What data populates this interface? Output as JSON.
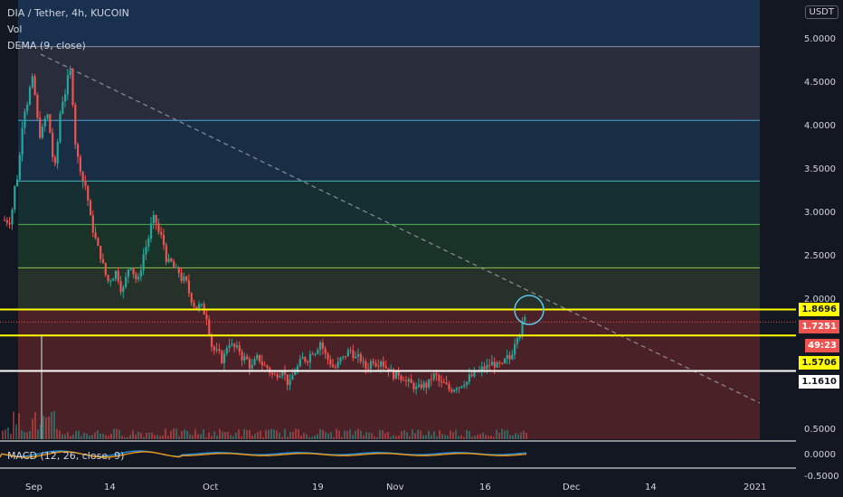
{
  "header": {
    "symbol": "DIA / Tether, 4h, KUCOIN",
    "vol_label": "Vol",
    "dema_label": "DEMA (9, close)",
    "macd_label": "MACD (12, 26, close, 9)"
  },
  "currency": "USDT",
  "colors": {
    "bg": "#131722",
    "up": "#26a69a",
    "down": "#ef5350",
    "yellow_line": "#ffff00",
    "white_line": "#ffffff",
    "annotation": "#5bc6e8"
  },
  "price_tags": {
    "level_top": "1.8696",
    "last_price": "1.7251",
    "countdown": "49:23",
    "level_mid": "1.5706",
    "level_low": "1.1610"
  },
  "chart_data": {
    "type": "candlestick",
    "y_ticks": [
      "5.0000",
      "4.5000",
      "4.0000",
      "3.5000",
      "3.0000",
      "2.5000",
      "2.0000",
      "0.5000"
    ],
    "y_tick_values": [
      5.0,
      4.5,
      4.0,
      3.5,
      3.0,
      2.5,
      2.0,
      0.5
    ],
    "macd_ticks": [
      "0.0000",
      "-0.5000"
    ],
    "x_ticks": [
      "Sep",
      "14",
      "Oct",
      "19",
      "Nov",
      "16",
      "Dec",
      "14",
      "2021"
    ],
    "fib_levels": [
      4.9,
      4.05,
      3.35,
      2.85,
      2.35,
      1.87
    ],
    "horizontal_levels": [
      {
        "value": 1.8696,
        "color": "yellow"
      },
      {
        "value": 1.5706,
        "color": "yellow"
      },
      {
        "value": 1.161,
        "color": "white"
      }
    ],
    "close_series": [
      2.9,
      3.4,
      4.2,
      4.5,
      3.9,
      4.1,
      3.5,
      4.3,
      4.6,
      3.6,
      3.3,
      2.8,
      2.5,
      2.2,
      2.3,
      2.1,
      2.4,
      2.2,
      2.6,
      2.9,
      2.7,
      2.4,
      2.3,
      2.2,
      2.0,
      1.9,
      1.8,
      1.4,
      1.3,
      1.5,
      1.4,
      1.3,
      1.2,
      1.3,
      1.2,
      1.1,
      1.2,
      1.0,
      1.2,
      1.3,
      1.4,
      1.5,
      1.3,
      1.2,
      1.3,
      1.4,
      1.3,
      1.2,
      1.3,
      1.3,
      1.2,
      1.1,
      1.1,
      1.0,
      0.95,
      1.0,
      1.1,
      1.0,
      0.95,
      1.0,
      1.05,
      1.1,
      1.15,
      1.2,
      1.25,
      1.2,
      1.3,
      1.6,
      1.75
    ]
  }
}
